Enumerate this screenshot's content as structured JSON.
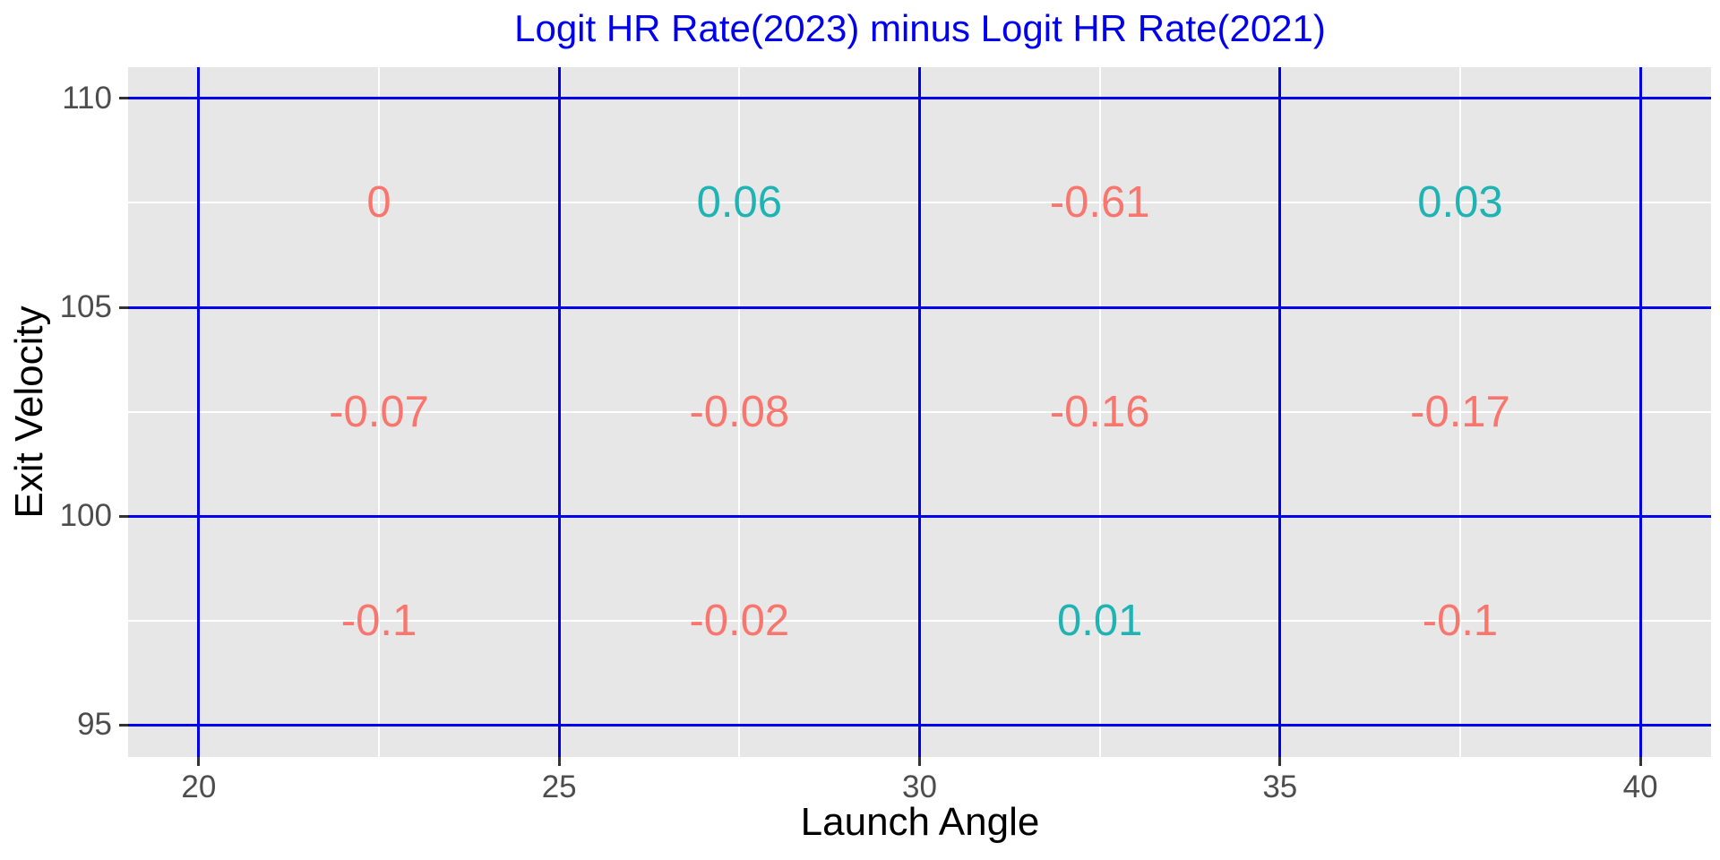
{
  "page": {
    "background": "#FFFFFF"
  },
  "chart_data": {
    "type": "heatmap",
    "title": "Logit HR Rate(2023) minus Logit HR Rate(2021)",
    "xlabel": "Launch Angle",
    "ylabel": "Exit Velocity",
    "x_ticks": [
      20,
      25,
      30,
      35,
      40
    ],
    "y_ticks": [
      95,
      100,
      105,
      110
    ],
    "x_minor": [
      22.5,
      27.5,
      32.5,
      37.5
    ],
    "y_minor": [
      97.5,
      102.5,
      107.5
    ],
    "xlim": [
      19.02,
      40.98
    ],
    "ylim": [
      94.23,
      110.75
    ],
    "grid": true,
    "legend_position": "none",
    "points": [
      {
        "x": 22.5,
        "y": 107.5,
        "label": "0",
        "color": "negative"
      },
      {
        "x": 27.5,
        "y": 107.5,
        "label": "0.06",
        "color": "positive"
      },
      {
        "x": 32.5,
        "y": 107.5,
        "label": "-0.61",
        "color": "negative"
      },
      {
        "x": 37.5,
        "y": 107.5,
        "label": "0.03",
        "color": "positive"
      },
      {
        "x": 22.5,
        "y": 102.5,
        "label": "-0.07",
        "color": "negative"
      },
      {
        "x": 27.5,
        "y": 102.5,
        "label": "-0.08",
        "color": "negative"
      },
      {
        "x": 32.5,
        "y": 102.5,
        "label": "-0.16",
        "color": "negative"
      },
      {
        "x": 37.5,
        "y": 102.5,
        "label": "-0.17",
        "color": "negative"
      },
      {
        "x": 22.5,
        "y": 97.5,
        "label": "-0.1",
        "color": "negative"
      },
      {
        "x": 27.5,
        "y": 97.5,
        "label": "-0.02",
        "color": "negative"
      },
      {
        "x": 32.5,
        "y": 97.5,
        "label": "0.01",
        "color": "positive"
      },
      {
        "x": 37.5,
        "y": 97.5,
        "label": "-0.1",
        "color": "negative"
      }
    ],
    "colors": {
      "negative": "#F8766D",
      "positive": "#1FB3B3",
      "title": "#0000EE",
      "major_grid": "#0000EE",
      "minor_grid": "#FFFFFF",
      "panel_bg": "#E7E7E7",
      "tick_label": "#4D4D4D",
      "axis_title": "#000000",
      "tick_mark": "#333333"
    }
  }
}
